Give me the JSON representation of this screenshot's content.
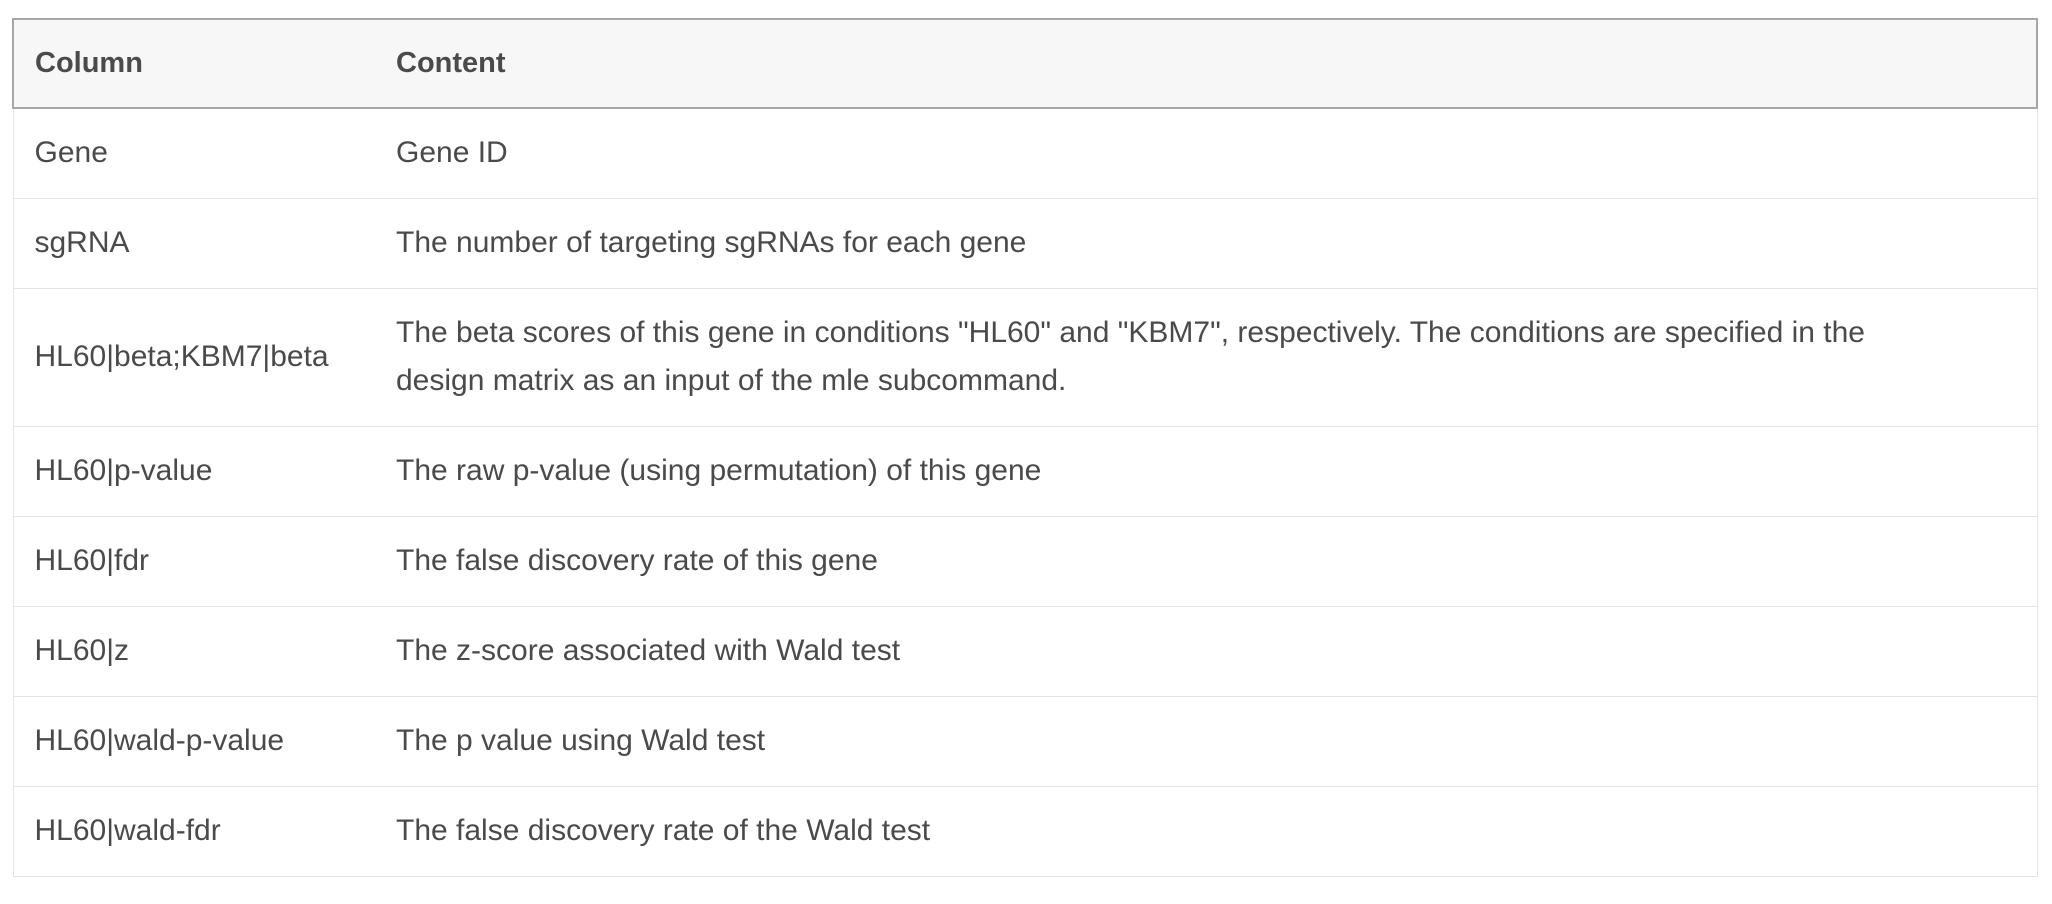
{
  "table": {
    "headers": [
      "Column",
      "Content"
    ],
    "rows": [
      {
        "column": "Gene",
        "content": "Gene ID"
      },
      {
        "column": "sgRNA",
        "content": "The number of targeting sgRNAs for each gene"
      },
      {
        "column": "HL60|beta;KBM7|beta",
        "content": "The beta scores of this gene in conditions \"HL60\" and \"KBM7\", respectively. The conditions are specified in the design matrix as an input of the mle subcommand."
      },
      {
        "column": "HL60|p-value",
        "content": "The raw p-value (using permutation) of this gene"
      },
      {
        "column": "HL60|fdr",
        "content": "The false discovery rate of this gene"
      },
      {
        "column": "HL60|z",
        "content": "The z-score associated with Wald test"
      },
      {
        "column": "HL60|wald-p-value",
        "content": "The p value using Wald test"
      },
      {
        "column": "HL60|wald-fdr",
        "content": "The false discovery rate of the Wald test"
      }
    ]
  }
}
